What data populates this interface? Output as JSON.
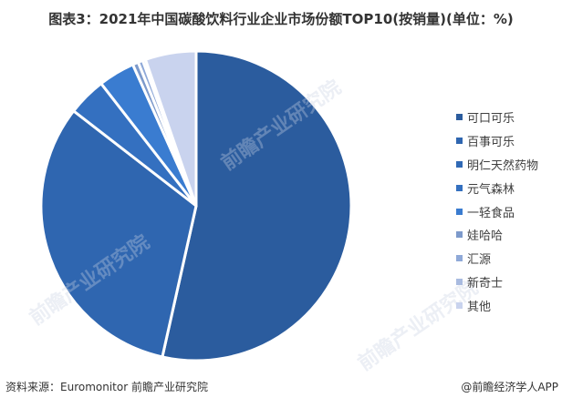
{
  "title": "图表3：2021年中国碳酸饮料行业企业市场份额TOP10(按销量)(单位：%)",
  "footer": {
    "source": "资料来源：Euromonitor 前瞻产业研究院",
    "credit": "@前瞻经济学人APP"
  },
  "watermark": "前瞻产业研究院",
  "chart_data": {
    "type": "pie",
    "title": "2021年中国碳酸饮料行业企业市场份额TOP10(按销量)(单位：%)",
    "categories": [
      "可口可乐",
      "百事可乐",
      "明仁天然药物",
      "元气森林",
      "一轻食品",
      "娃哈哈",
      "汇源",
      "新奇士",
      "其他"
    ],
    "values": [
      53.5,
      32.0,
      0.0,
      4.0,
      3.8,
      0.6,
      0.5,
      0.3,
      5.3
    ],
    "colors": [
      "#2B5C9E",
      "#2F66B0",
      "#2F66B0",
      "#3470C0",
      "#3A7CD0",
      "#7D9ACB",
      "#8FA9D8",
      "#A9BBE0",
      "#C9D3EE"
    ],
    "legend_position": "right",
    "start_angle_deg": 0,
    "direction": "clockwise"
  },
  "legend": [
    {
      "label": "可口可乐",
      "color": "#2B5C9E"
    },
    {
      "label": "百事可乐",
      "color": "#2F66B0"
    },
    {
      "label": "明仁天然药物",
      "color": "#3069B5"
    },
    {
      "label": "元气森林",
      "color": "#3470C0"
    },
    {
      "label": "一轻食品",
      "color": "#3A7CD0"
    },
    {
      "label": "娃哈哈",
      "color": "#7D9ACB"
    },
    {
      "label": "汇源",
      "color": "#8FA9D8"
    },
    {
      "label": "新奇士",
      "color": "#A9BBE0"
    },
    {
      "label": "其他",
      "color": "#C9D3EE"
    }
  ]
}
